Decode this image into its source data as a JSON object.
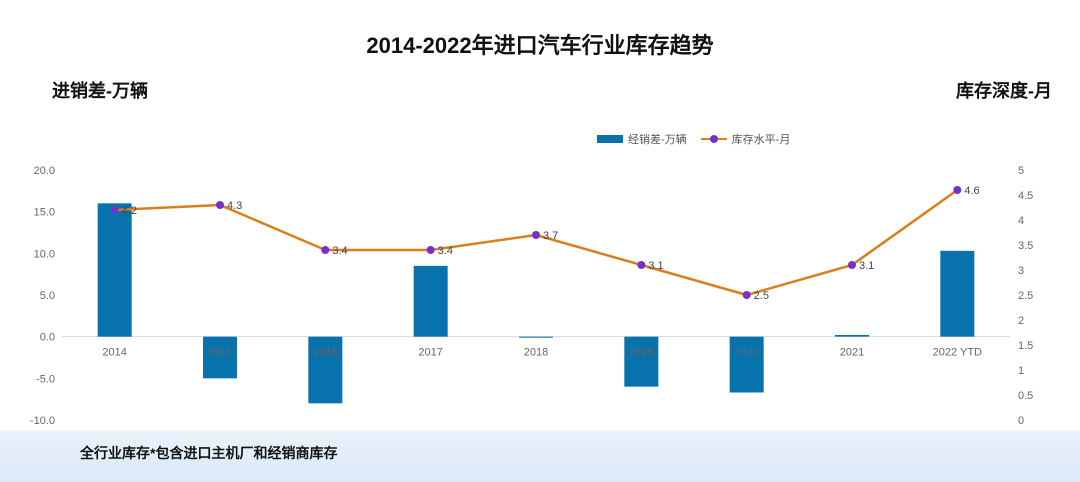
{
  "chart_data": {
    "type": "bar+line",
    "title": "2014-2022年进口汽车行业库存趋势",
    "left_axis_title": "进销差-万辆",
    "right_axis_title": "库存深度-月",
    "footnote": "全行业库存*包含进口主机厂和经销商库存",
    "categories": [
      "2014",
      "2015",
      "2016",
      "2017",
      "2018",
      "2019",
      "2020",
      "2021",
      "2022 YTD"
    ],
    "series": [
      {
        "name": "经销差-万辆",
        "type": "bar",
        "axis": "left",
        "color": "#0872ad",
        "values": [
          16.0,
          -5.0,
          -8.0,
          8.5,
          0.0,
          -6.0,
          -6.7,
          0.2,
          10.3
        ]
      },
      {
        "name": "库存水平-月",
        "type": "line",
        "axis": "right",
        "color": "#d97f1c",
        "marker_color": "#7b2fc8",
        "values": [
          4.2,
          4.3,
          3.4,
          3.4,
          3.7,
          3.1,
          2.5,
          3.1,
          4.6
        ],
        "labels": [
          "4.2",
          "4.3",
          "3.4",
          "3.4",
          "3.7",
          "3.1",
          "2.5",
          "3.1",
          "4.6"
        ]
      }
    ],
    "left_axis": {
      "min": -10,
      "max": 20,
      "step": 5,
      "tick_labels": [
        "-10.0",
        "-5.0",
        "0.0",
        "5.0",
        "10.0",
        "15.0",
        "20.0"
      ]
    },
    "right_axis": {
      "min": 0,
      "max": 5,
      "step": 0.5,
      "tick_labels": [
        "0",
        "0.5",
        "1",
        "1.5",
        "2",
        "2.5",
        "3",
        "3.5",
        "4",
        "4.5",
        "5"
      ]
    },
    "legend_position": "top-right",
    "grid": false
  }
}
